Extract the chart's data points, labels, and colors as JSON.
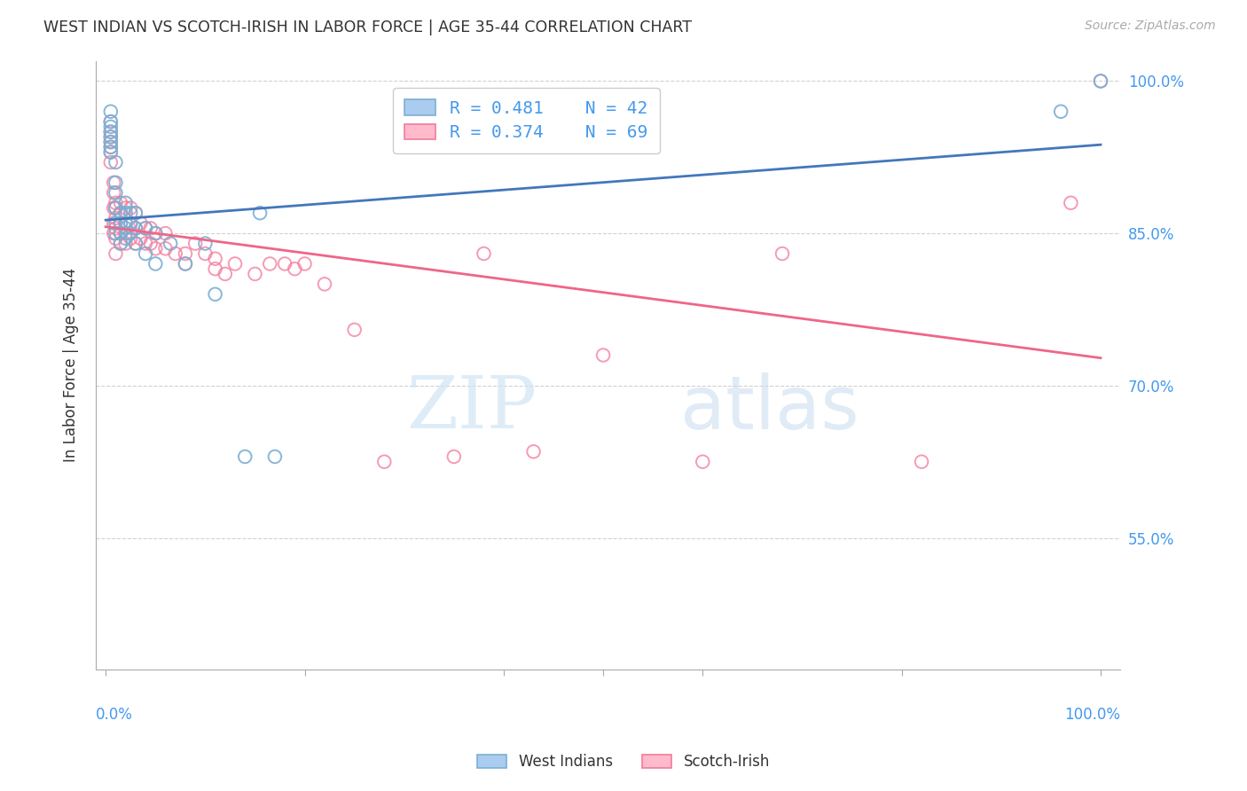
{
  "title": "WEST INDIAN VS SCOTCH-IRISH IN LABOR FORCE | AGE 35-44 CORRELATION CHART",
  "source": "Source: ZipAtlas.com",
  "ylabel": "In Labor Force | Age 35-44",
  "ytick_labels": [
    "100.0%",
    "85.0%",
    "70.0%",
    "55.0%"
  ],
  "ytick_values": [
    1.0,
    0.85,
    0.7,
    0.55
  ],
  "xlim": [
    0.0,
    1.0
  ],
  "ylim": [
    0.42,
    1.02
  ],
  "legend_R_blue": "R = 0.481",
  "legend_N_blue": "N = 42",
  "legend_R_pink": "R = 0.374",
  "legend_N_pink": "N = 69",
  "blue_color": "#7BAFD4",
  "pink_color": "#F4799A",
  "blue_line_color": "#4477BB",
  "pink_line_color": "#EE6688",
  "west_indians_x": [
    0.005,
    0.005,
    0.005,
    0.005,
    0.005,
    0.005,
    0.005,
    0.005,
    0.01,
    0.01,
    0.01,
    0.01,
    0.01,
    0.01,
    0.015,
    0.015,
    0.015,
    0.015,
    0.02,
    0.02,
    0.02,
    0.02,
    0.02,
    0.025,
    0.025,
    0.025,
    0.03,
    0.03,
    0.03,
    0.04,
    0.04,
    0.05,
    0.05,
    0.065,
    0.08,
    0.1,
    0.11,
    0.14,
    0.155,
    0.17,
    0.96,
    1.0
  ],
  "west_indians_y": [
    0.97,
    0.96,
    0.955,
    0.95,
    0.945,
    0.94,
    0.935,
    0.93,
    0.92,
    0.9,
    0.89,
    0.875,
    0.86,
    0.85,
    0.87,
    0.86,
    0.85,
    0.84,
    0.88,
    0.87,
    0.86,
    0.855,
    0.845,
    0.87,
    0.86,
    0.85,
    0.87,
    0.855,
    0.84,
    0.855,
    0.83,
    0.85,
    0.82,
    0.84,
    0.82,
    0.84,
    0.79,
    0.63,
    0.87,
    0.63,
    0.97,
    1.0
  ],
  "scotch_irish_x": [
    0.005,
    0.005,
    0.005,
    0.005,
    0.005,
    0.005,
    0.005,
    0.008,
    0.008,
    0.008,
    0.008,
    0.008,
    0.01,
    0.01,
    0.01,
    0.01,
    0.01,
    0.01,
    0.015,
    0.015,
    0.015,
    0.015,
    0.015,
    0.02,
    0.02,
    0.02,
    0.02,
    0.025,
    0.025,
    0.025,
    0.03,
    0.03,
    0.03,
    0.035,
    0.035,
    0.04,
    0.04,
    0.045,
    0.045,
    0.05,
    0.05,
    0.06,
    0.06,
    0.07,
    0.08,
    0.08,
    0.09,
    0.1,
    0.11,
    0.11,
    0.12,
    0.13,
    0.15,
    0.165,
    0.18,
    0.19,
    0.2,
    0.22,
    0.25,
    0.28,
    0.35,
    0.38,
    0.43,
    0.5,
    0.6,
    0.68,
    0.82,
    0.97,
    1.0
  ],
  "scotch_irish_y": [
    0.96,
    0.95,
    0.945,
    0.94,
    0.935,
    0.93,
    0.92,
    0.9,
    0.89,
    0.875,
    0.86,
    0.85,
    0.88,
    0.875,
    0.865,
    0.855,
    0.845,
    0.83,
    0.88,
    0.87,
    0.86,
    0.85,
    0.84,
    0.875,
    0.86,
    0.85,
    0.84,
    0.875,
    0.86,
    0.845,
    0.87,
    0.855,
    0.84,
    0.86,
    0.845,
    0.855,
    0.84,
    0.855,
    0.84,
    0.85,
    0.835,
    0.85,
    0.835,
    0.83,
    0.83,
    0.82,
    0.84,
    0.83,
    0.825,
    0.815,
    0.81,
    0.82,
    0.81,
    0.82,
    0.82,
    0.815,
    0.82,
    0.8,
    0.755,
    0.625,
    0.63,
    0.83,
    0.635,
    0.73,
    0.625,
    0.83,
    0.625,
    0.88,
    1.0
  ]
}
